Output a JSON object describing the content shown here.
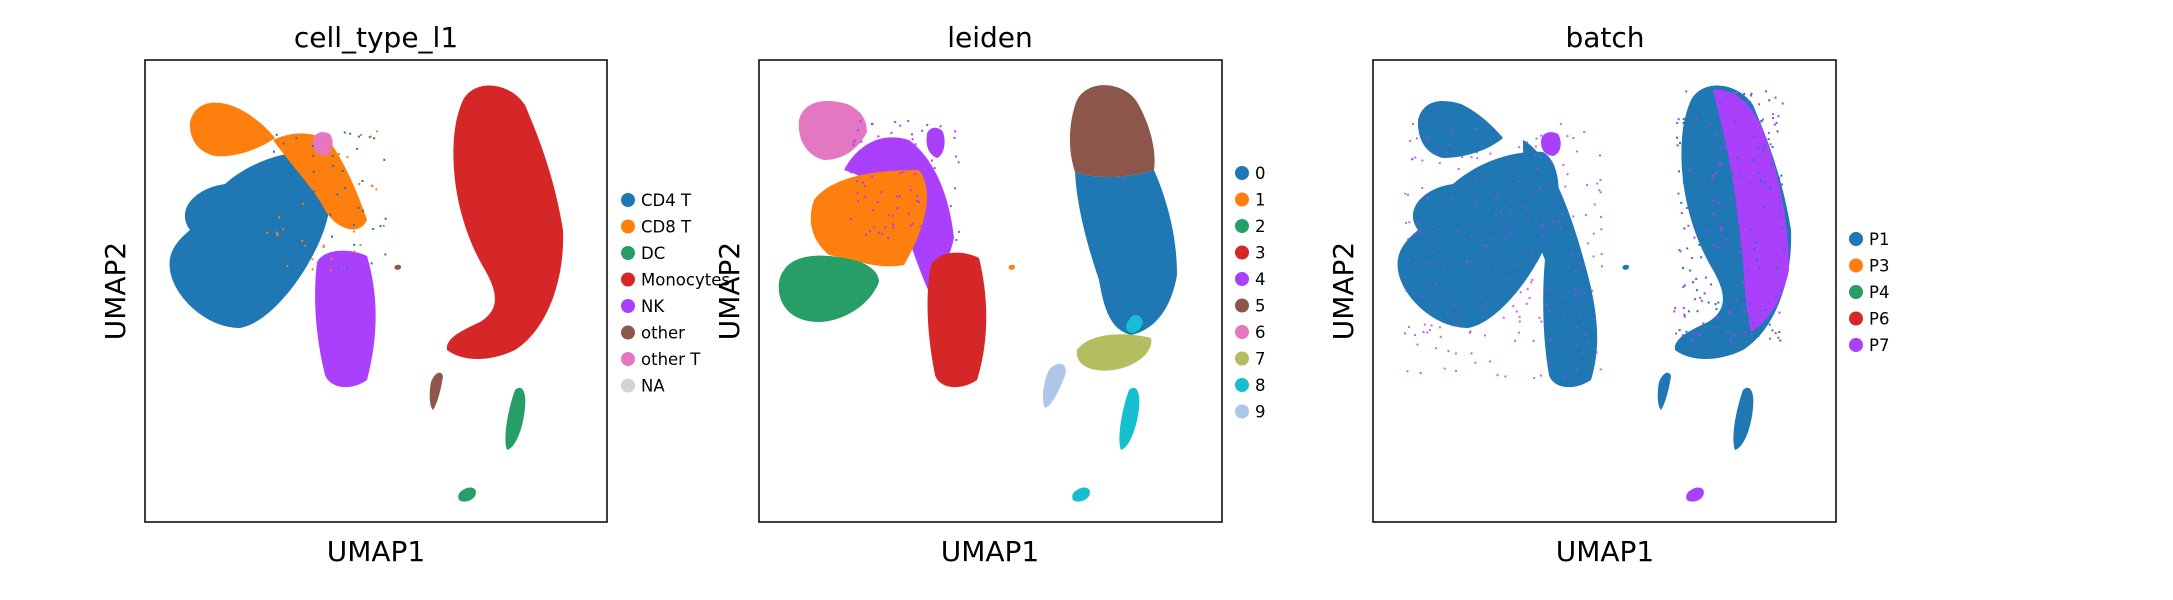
{
  "chart_data": [
    {
      "type": "scatter",
      "title": "cell_type_l1",
      "xlabel": "UMAP1",
      "ylabel": "UMAP2",
      "grid": false,
      "ticks": false,
      "legend_placement": "right",
      "legend": [
        {
          "label": "CD4 T",
          "color": "#1f77b4"
        },
        {
          "label": "CD8 T",
          "color": "#ff7f0e"
        },
        {
          "label": "DC",
          "color": "#279e68"
        },
        {
          "label": "Monocytes",
          "color": "#d62728"
        },
        {
          "label": "NK",
          "color": "#aa40fc"
        },
        {
          "label": "other",
          "color": "#8c564b"
        },
        {
          "label": "other T",
          "color": "#e377c2"
        },
        {
          "label": "NA",
          "color": "#d3d3d3"
        }
      ]
    },
    {
      "type": "scatter",
      "title": "leiden",
      "xlabel": "UMAP1",
      "ylabel": "UMAP2",
      "grid": false,
      "ticks": false,
      "legend_placement": "right",
      "legend": [
        {
          "label": "0",
          "color": "#1f77b4"
        },
        {
          "label": "1",
          "color": "#ff7f0e"
        },
        {
          "label": "2",
          "color": "#279e68"
        },
        {
          "label": "3",
          "color": "#d62728"
        },
        {
          "label": "4",
          "color": "#aa40fc"
        },
        {
          "label": "5",
          "color": "#8c564b"
        },
        {
          "label": "6",
          "color": "#e377c2"
        },
        {
          "label": "7",
          "color": "#b5bd61"
        },
        {
          "label": "8",
          "color": "#17becf"
        },
        {
          "label": "9",
          "color": "#aec7e8"
        }
      ]
    },
    {
      "type": "scatter",
      "title": "batch",
      "xlabel": "UMAP1",
      "ylabel": "UMAP2",
      "grid": false,
      "ticks": false,
      "legend_placement": "right",
      "legend": [
        {
          "label": "P1",
          "color": "#1f77b4"
        },
        {
          "label": "P3",
          "color": "#ff7f0e"
        },
        {
          "label": "P4",
          "color": "#279e68"
        },
        {
          "label": "P6",
          "color": "#d62728"
        },
        {
          "label": "P7",
          "color": "#aa40fc"
        }
      ]
    }
  ]
}
